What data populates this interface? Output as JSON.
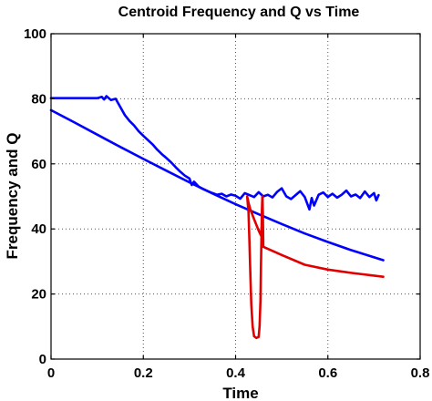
{
  "chart_data": {
    "type": "line",
    "title": "Centroid Frequency and Q vs Time",
    "xlabel": "Time",
    "ylabel": "Frequency and Q",
    "xlim": [
      0,
      0.8
    ],
    "ylim": [
      0,
      100
    ],
    "x_ticks": [
      "0",
      "0.2",
      "0.4",
      "0.6",
      "0.8"
    ],
    "y_ticks": [
      "0",
      "20",
      "40",
      "60",
      "80",
      "100"
    ],
    "grid": true,
    "series": [
      {
        "color": "#0000ff",
        "points": [
          [
            0.0,
            80.2
          ],
          [
            0.05,
            80.2
          ],
          [
            0.1,
            80.2
          ],
          [
            0.11,
            80.6
          ],
          [
            0.115,
            79.8
          ],
          [
            0.12,
            80.8
          ],
          [
            0.13,
            79.6
          ],
          [
            0.14,
            80.0
          ],
          [
            0.15,
            77.5
          ],
          [
            0.16,
            75.0
          ],
          [
            0.17,
            73.2
          ],
          [
            0.18,
            71.8
          ],
          [
            0.19,
            70.0
          ],
          [
            0.2,
            68.6
          ],
          [
            0.21,
            67.3
          ],
          [
            0.22,
            66.0
          ],
          [
            0.23,
            64.4
          ],
          [
            0.24,
            63.0
          ],
          [
            0.25,
            61.8
          ],
          [
            0.26,
            60.5
          ],
          [
            0.27,
            59.0
          ],
          [
            0.28,
            57.6
          ],
          [
            0.29,
            56.4
          ],
          [
            0.3,
            55.5
          ],
          [
            0.305,
            53.5
          ],
          [
            0.31,
            54.5
          ],
          [
            0.32,
            53.0
          ],
          [
            0.33,
            52.2
          ],
          [
            0.34,
            51.6
          ],
          [
            0.35,
            51.0
          ],
          [
            0.36,
            50.5
          ],
          [
            0.37,
            50.8
          ],
          [
            0.38,
            50.0
          ],
          [
            0.39,
            50.6
          ],
          [
            0.4,
            50.2
          ],
          [
            0.41,
            49.3
          ],
          [
            0.42,
            51.0
          ],
          [
            0.43,
            50.4
          ],
          [
            0.44,
            49.8
          ],
          [
            0.45,
            51.3
          ],
          [
            0.46,
            50.0
          ],
          [
            0.47,
            50.5
          ],
          [
            0.48,
            49.7
          ],
          [
            0.49,
            51.4
          ],
          [
            0.5,
            52.5
          ],
          [
            0.51,
            50.0
          ],
          [
            0.52,
            49.2
          ],
          [
            0.53,
            50.4
          ],
          [
            0.54,
            51.6
          ],
          [
            0.55,
            49.8
          ],
          [
            0.56,
            46.0
          ],
          [
            0.565,
            49.5
          ],
          [
            0.57,
            47.2
          ],
          [
            0.58,
            50.5
          ],
          [
            0.59,
            51.2
          ],
          [
            0.6,
            49.8
          ],
          [
            0.61,
            50.8
          ],
          [
            0.62,
            49.6
          ],
          [
            0.63,
            50.5
          ],
          [
            0.64,
            51.8
          ],
          [
            0.65,
            50.0
          ],
          [
            0.66,
            50.6
          ],
          [
            0.67,
            49.5
          ],
          [
            0.68,
            51.5
          ],
          [
            0.69,
            49.8
          ],
          [
            0.7,
            51.0
          ],
          [
            0.705,
            48.8
          ],
          [
            0.71,
            50.4
          ]
        ]
      },
      {
        "color": "#0000ff",
        "points": [
          [
            0.0,
            76.5
          ],
          [
            0.05,
            72.8
          ],
          [
            0.1,
            69.0
          ],
          [
            0.15,
            65.2
          ],
          [
            0.2,
            61.5
          ],
          [
            0.25,
            57.9
          ],
          [
            0.3,
            54.3
          ],
          [
            0.35,
            50.9
          ],
          [
            0.4,
            47.6
          ],
          [
            0.45,
            44.5
          ],
          [
            0.5,
            41.5
          ],
          [
            0.55,
            38.6
          ],
          [
            0.6,
            36.0
          ],
          [
            0.65,
            33.5
          ],
          [
            0.72,
            30.4
          ]
        ]
      },
      {
        "color": "#e00000",
        "points": [
          [
            0.425,
            50.0
          ],
          [
            0.428,
            45.0
          ],
          [
            0.43,
            36.0
          ],
          [
            0.432,
            26.0
          ],
          [
            0.434,
            17.0
          ],
          [
            0.437,
            10.0
          ],
          [
            0.44,
            7.0
          ],
          [
            0.445,
            6.5
          ],
          [
            0.45,
            6.8
          ],
          [
            0.452,
            10.0
          ],
          [
            0.454,
            18.0
          ],
          [
            0.455,
            28.0
          ],
          [
            0.456,
            38.0
          ],
          [
            0.457,
            46.0
          ],
          [
            0.458,
            50.0
          ],
          [
            0.457,
            42.0
          ],
          [
            0.455,
            38.0
          ],
          [
            0.45,
            39.5
          ],
          [
            0.44,
            43.0
          ],
          [
            0.432,
            46.0
          ],
          [
            0.428,
            48.0
          ],
          [
            0.425,
            50.0
          ]
        ]
      },
      {
        "color": "#e00000",
        "points": [
          [
            0.458,
            50.0
          ],
          [
            0.459,
            45.0
          ],
          [
            0.46,
            34.5
          ],
          [
            0.5,
            32.0
          ],
          [
            0.55,
            29.0
          ],
          [
            0.6,
            27.5
          ],
          [
            0.65,
            26.5
          ],
          [
            0.72,
            25.3
          ]
        ]
      }
    ]
  }
}
